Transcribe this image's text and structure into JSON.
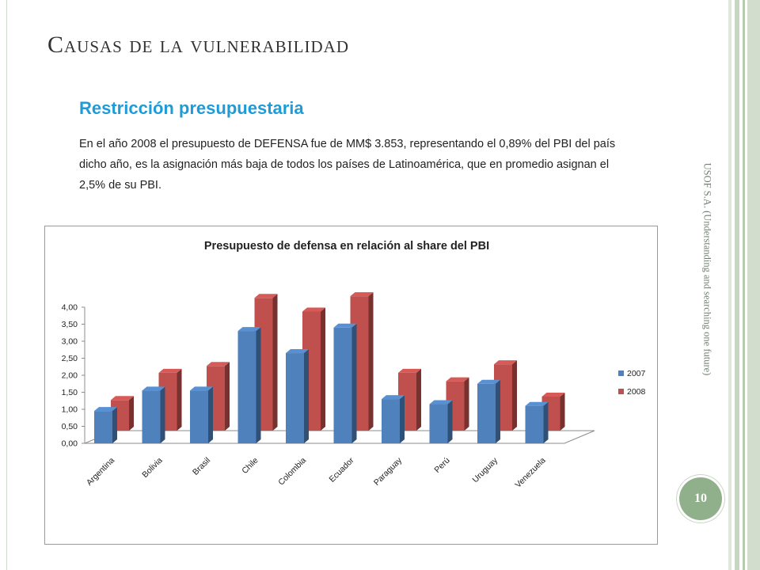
{
  "slide": {
    "title": "Causas de la vulnerabilidad",
    "subtitle": "Restricción presupuestaria",
    "paragraph": "En el año 2008 el presupuesto de DEFENSA fue de MM$ 3.853, representando el 0,89% del PBI del país dicho año, es la asignación más baja de todos los países de Latinoamérica, que en promedio asignan el 2,5% de su PBI.",
    "side_text": "USOF S.A. (Understanding and searching one future)",
    "page_number": "10"
  },
  "colors": {
    "series_2007": "#4f81bd",
    "series_2008": "#c0504d",
    "page_badge": "#8fb08a",
    "subtitle": "#1f9bd7"
  },
  "chart_data": {
    "type": "bar",
    "title": "Presupuesto de defensa en relación al share del PBI",
    "categories": [
      "Argentina",
      "Bolivia",
      "Brasil",
      "Chile",
      "Colombia",
      "Ecuador",
      "Paraguay",
      "Perú",
      "Uruguay",
      "Venezuela"
    ],
    "series": [
      {
        "name": "2007",
        "values": [
          0.95,
          1.55,
          1.55,
          3.3,
          2.65,
          3.4,
          1.3,
          1.15,
          1.75,
          1.1
        ]
      },
      {
        "name": "2008",
        "values": [
          0.9,
          1.7,
          1.9,
          3.9,
          3.5,
          3.95,
          1.7,
          1.45,
          1.95,
          1.0
        ]
      }
    ],
    "yticks": [
      "0,00",
      "0,50",
      "1,00",
      "1,50",
      "2,00",
      "2,50",
      "3,00",
      "3,50",
      "4,00"
    ],
    "ylim": [
      0,
      4
    ],
    "legend_position": "right",
    "style": "3d-clustered-column"
  }
}
